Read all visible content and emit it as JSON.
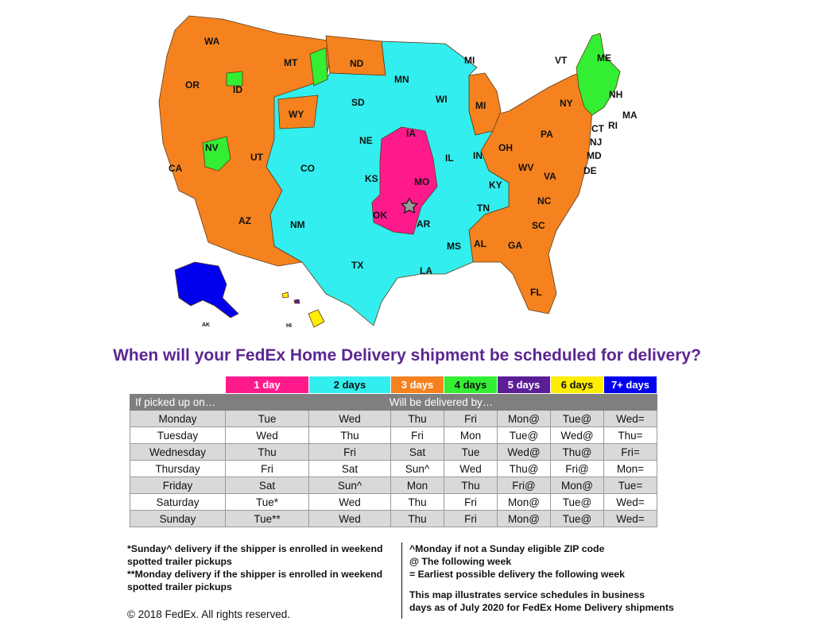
{
  "map": {
    "colors": {
      "one_day": "#ff1a8c",
      "two_days": "#33eeee",
      "three_days": "#f5821f",
      "four_days": "#33ee33",
      "five_days": "#5b1e96",
      "six_days": "#ffee00",
      "seven_plus_days": "#0000ee"
    },
    "origin_marker": "star-icon",
    "state_labels": {
      "WA": "WA",
      "OR": "OR",
      "CA": "CA",
      "ID": "ID",
      "NV": "NV",
      "MT": "MT",
      "WY": "WY",
      "UT": "UT",
      "AZ": "AZ",
      "CO": "CO",
      "NM": "NM",
      "ND": "ND",
      "SD": "SD",
      "NE": "NE",
      "KS": "KS",
      "OK": "OK",
      "TX": "TX",
      "MN": "MN",
      "IA": "IA",
      "MO": "MO",
      "AR": "AR",
      "LA": "LA",
      "WI": "WI",
      "IL": "IL",
      "MS": "MS",
      "MI_upper": "MI",
      "MI": "MI",
      "IN": "IN",
      "KY": "KY",
      "TN": "TN",
      "AL": "AL",
      "GA": "GA",
      "FL": "FL",
      "SC": "SC",
      "NC": "NC",
      "OH": "OH",
      "WV": "WV",
      "VA": "VA",
      "PA": "PA",
      "NY": "NY",
      "VT": "VT",
      "ME": "ME",
      "NH": "NH",
      "MA": "MA",
      "RI": "RI",
      "CT": "CT",
      "NJ": "NJ",
      "MD": "MD",
      "DE": "DE",
      "AK": "AK",
      "HI": "HI"
    }
  },
  "title": "When will your FedEx Home Delivery shipment be scheduled for delivery?",
  "legend": [
    {
      "label": "1 day",
      "color": "#ff1a8c",
      "text_color": "#ffffff"
    },
    {
      "label": "2 days",
      "color": "#33eeee",
      "text_color": "#111111"
    },
    {
      "label": "3 days",
      "color": "#f5821f",
      "text_color": "#ffffff"
    },
    {
      "label": "4 days",
      "color": "#33ee33",
      "text_color": "#111111"
    },
    {
      "label": "5 days",
      "color": "#5b1e96",
      "text_color": "#ffffff"
    },
    {
      "label": "6 days",
      "color": "#ffee00",
      "text_color": "#111111"
    },
    {
      "label": "7+ days",
      "color": "#0000ee",
      "text_color": "#ffffff"
    }
  ],
  "table": {
    "pickup_header": "If picked up on…",
    "delivery_header": "Will be delivered by…",
    "rows": [
      {
        "day": "Monday",
        "cells": [
          "Tue",
          "Wed",
          "Thu",
          "Fri",
          "Mon@",
          "Tue@",
          "Wed="
        ]
      },
      {
        "day": "Tuesday",
        "cells": [
          "Wed",
          "Thu",
          "Fri",
          "Mon",
          "Tue@",
          "Wed@",
          "Thu="
        ]
      },
      {
        "day": "Wednesday",
        "cells": [
          "Thu",
          "Fri",
          "Sat",
          "Tue",
          "Wed@",
          "Thu@",
          "Fri="
        ]
      },
      {
        "day": "Thursday",
        "cells": [
          "Fri",
          "Sat",
          "Sun^",
          "Wed",
          "Thu@",
          "Fri@",
          "Mon="
        ]
      },
      {
        "day": "Friday",
        "cells": [
          "Sat",
          "Sun^",
          "Mon",
          "Thu",
          "Fri@",
          "Mon@",
          "Tue="
        ]
      },
      {
        "day": "Saturday",
        "cells": [
          "Tue*",
          "Wed",
          "Thu",
          "Fri",
          "Mon@",
          "Tue@",
          "Wed="
        ]
      },
      {
        "day": "Sunday",
        "cells": [
          "Tue**",
          "Wed",
          "Thu",
          "Fri",
          "Mon@",
          "Tue@",
          "Wed="
        ]
      }
    ]
  },
  "notes": {
    "left": [
      "*Sunday^ delivery if the shipper is enrolled in weekend",
      "spotted trailer pickups",
      "**Monday delivery if the shipper is enrolled in weekend",
      "spotted trailer pickups"
    ],
    "right_top": [
      "^Monday if not a Sunday eligible ZIP code",
      "@ The following week",
      "= Earliest possible delivery the following week"
    ],
    "right_bottom": [
      "This map illustrates service schedules in business",
      "days as of July 2020 for FedEx Home Delivery shipments"
    ]
  },
  "copyright": "© 2018 FedEx.  All rights reserved."
}
